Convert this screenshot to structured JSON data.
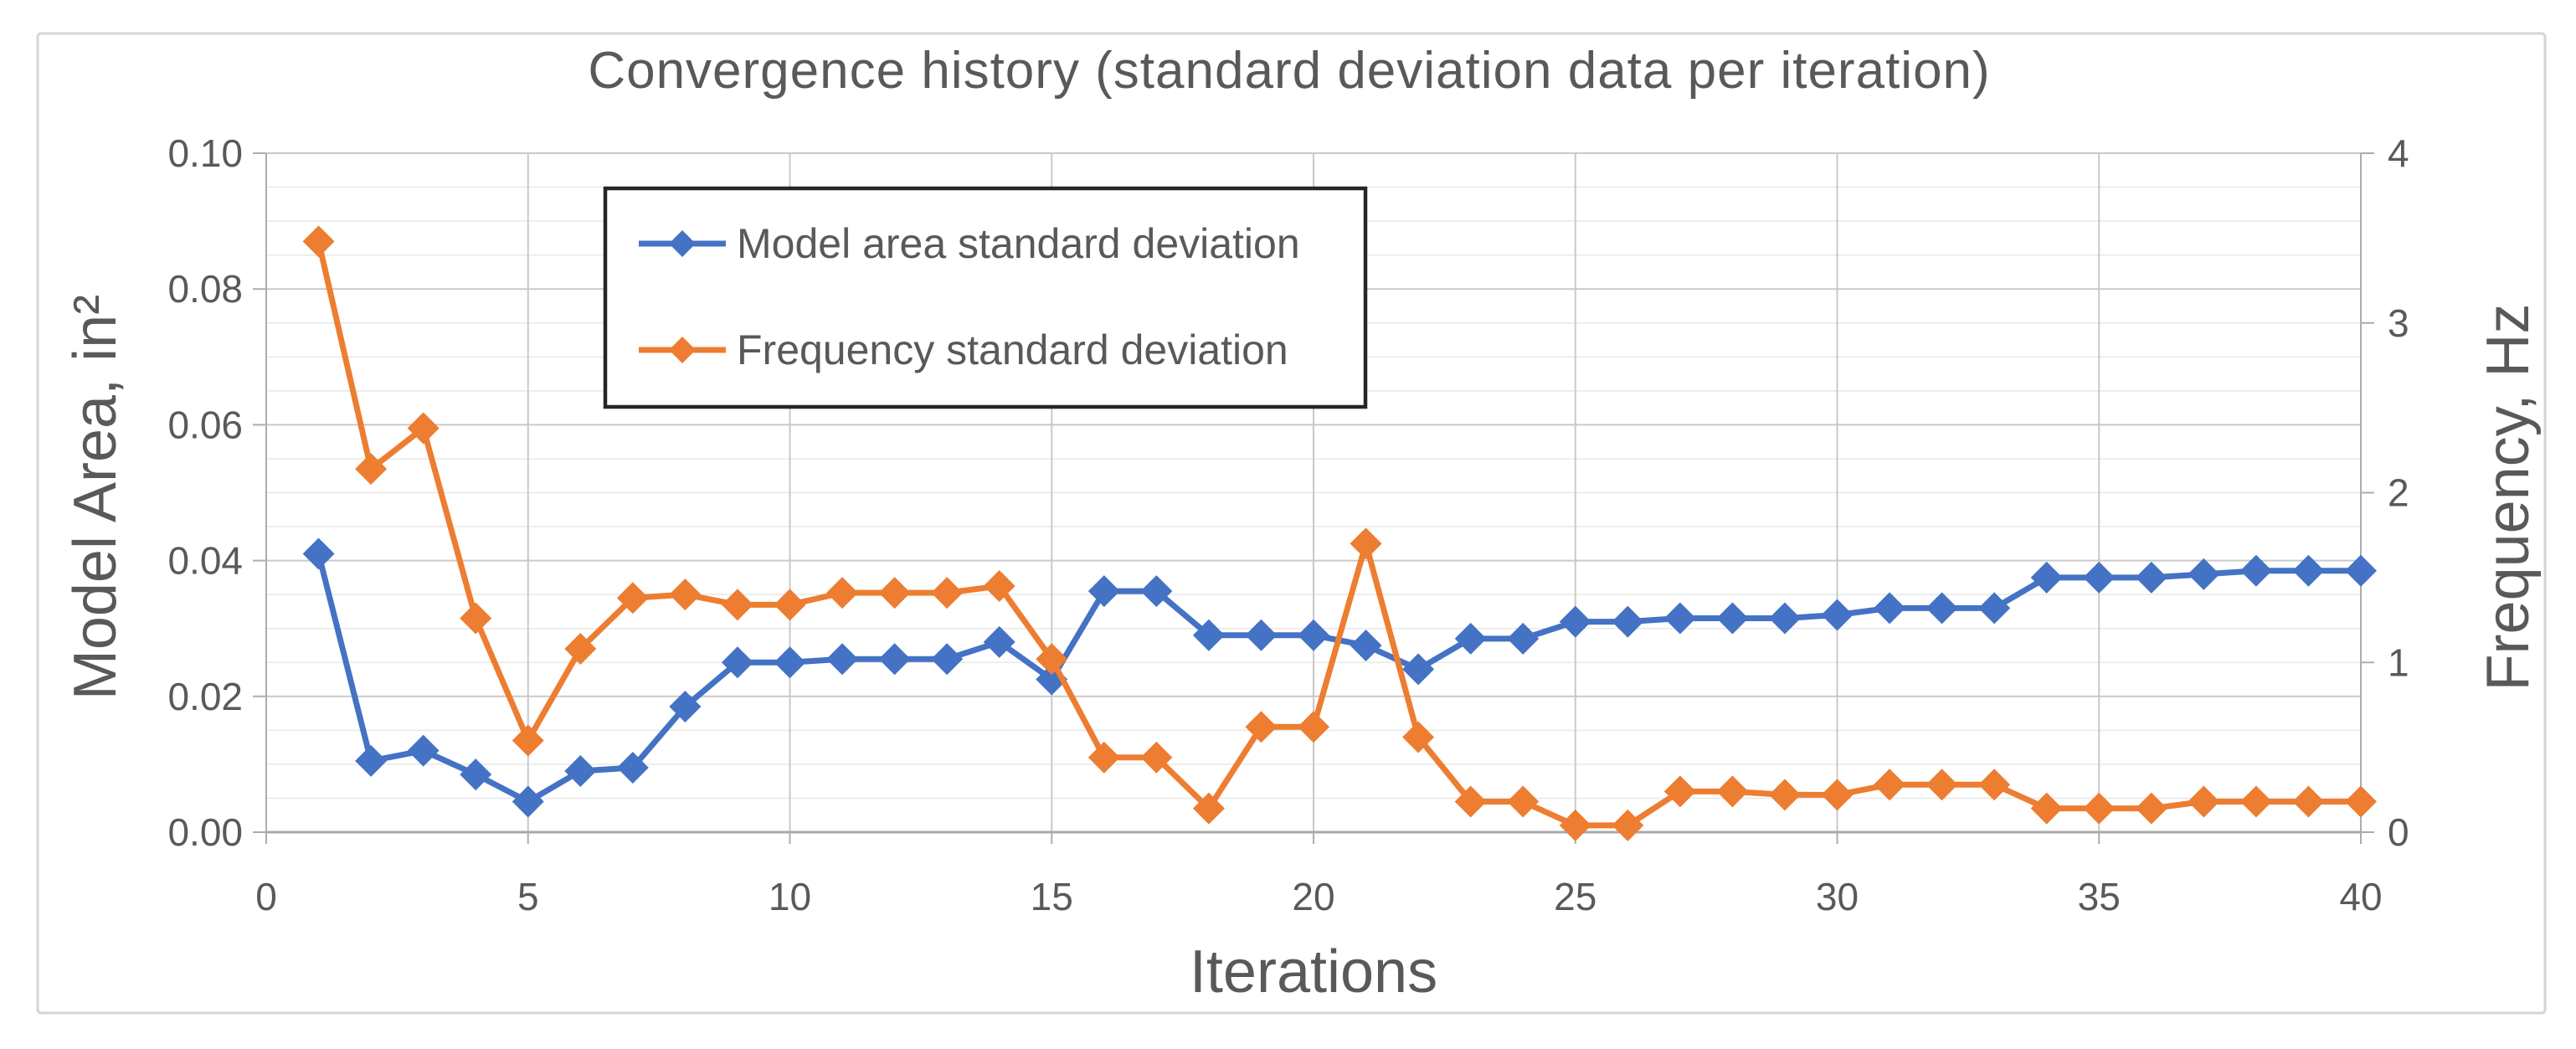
{
  "page": {
    "background": "#FFFFFF",
    "frame_border_color": "#D5D5D5"
  },
  "chart_data": {
    "type": "line",
    "title": "Convergence history (standard deviation data per iteration)",
    "xlabel": "Iterations",
    "ylabel_left": "Model Area, in²",
    "ylabel_right": "Frequency,  Hz",
    "x_range": [
      0,
      40
    ],
    "y_left_range": [
      0,
      0.1
    ],
    "y_right_range": [
      0,
      4
    ],
    "x_tick_values": [
      0,
      5,
      10,
      15,
      20,
      25,
      30,
      35,
      40
    ],
    "x_tick_labels": [
      "0",
      "5",
      "10",
      "15",
      "20",
      "25",
      "30",
      "35",
      "40"
    ],
    "y_left_tick_values": [
      0,
      0.02,
      0.04,
      0.06,
      0.08,
      0.1
    ],
    "y_left_tick_labels": [
      "0.00",
      "0.02",
      "0.04",
      "0.06",
      "0.08",
      "0.10"
    ],
    "y_right_tick_values": [
      0,
      1,
      2,
      3,
      4
    ],
    "y_right_tick_labels": [
      "0",
      "1",
      "2",
      "3",
      "4"
    ],
    "grid": {
      "horizontal_minor_step": 0.005,
      "horizontal_major_step": 0.02,
      "vertical_major_step": 5,
      "minor_color": "#E8E8E8",
      "major_color": "#C9C9C9",
      "axis_line_color": "#ADADAD"
    },
    "legend": {
      "position": "inside-top-left",
      "border_color": "#262626",
      "background": "#FFFFFF"
    },
    "x": [
      1,
      2,
      3,
      4,
      5,
      6,
      7,
      8,
      9,
      10,
      11,
      12,
      13,
      14,
      15,
      16,
      17,
      18,
      19,
      20,
      21,
      22,
      23,
      24,
      25,
      26,
      27,
      28,
      29,
      30,
      31,
      32,
      33,
      34,
      35,
      36,
      37,
      38,
      39,
      40
    ],
    "series": [
      {
        "name": "Model area standard deviation",
        "axis": "left",
        "color": "#4472C4",
        "marker": "diamond",
        "values": [
          0.041,
          0.0105,
          0.012,
          0.0085,
          0.0045,
          0.009,
          0.0095,
          0.0185,
          0.025,
          0.025,
          0.0255,
          0.0255,
          0.0255,
          0.028,
          0.0225,
          0.0355,
          0.0355,
          0.029,
          0.029,
          0.029,
          0.0275,
          0.024,
          0.0285,
          0.0285,
          0.031,
          0.031,
          0.0315,
          0.0315,
          0.0315,
          0.032,
          0.033,
          0.033,
          0.033,
          0.0375,
          0.0375,
          0.0375,
          0.038,
          0.0385,
          0.0385,
          0.0385
        ]
      },
      {
        "name": "Frequency standard deviation",
        "axis": "right",
        "color": "#ED7D31",
        "marker": "diamond",
        "values": [
          3.48,
          2.14,
          2.38,
          1.26,
          0.54,
          1.08,
          1.38,
          1.4,
          1.34,
          1.34,
          1.41,
          1.41,
          1.41,
          1.45,
          1.02,
          0.44,
          0.44,
          0.14,
          0.62,
          0.62,
          1.7,
          0.56,
          0.18,
          0.18,
          0.04,
          0.04,
          0.24,
          0.24,
          0.22,
          0.22,
          0.28,
          0.28,
          0.28,
          0.14,
          0.14,
          0.14,
          0.18,
          0.18,
          0.18,
          0.18
        ]
      }
    ],
    "text_color": "#595959"
  }
}
